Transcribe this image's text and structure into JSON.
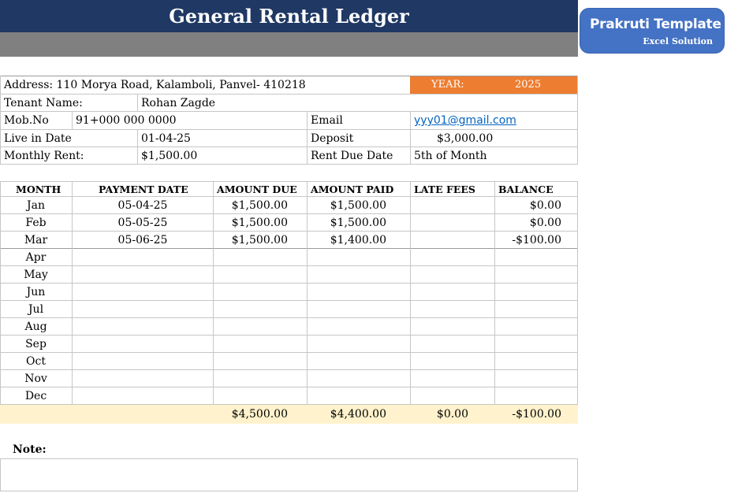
{
  "header": {
    "title": "General Rental Ledger"
  },
  "logo": {
    "brand": "Prakruti Template",
    "tagline": "Excel Solution",
    "color": "#4472c4"
  },
  "colors": {
    "title_bg": "#1f3864",
    "year_bg": "#ed7d31",
    "totals_bg": "#fff2cc",
    "link": "#0563c1"
  },
  "info": {
    "address": "Address: 110 Morya Road, Kalamboli, Panvel- 410218",
    "year_label": "YEAR:",
    "year_value": "2025",
    "tenant_label": "Tenant Name:",
    "tenant_value": "Rohan Zagde",
    "mob_label": "Mob.No",
    "mob_value": "91+000 000 0000",
    "email_label": "Email",
    "email_value": "yyy01@gmail.com",
    "live_label": "Live in Date",
    "live_value": "01-04-25",
    "deposit_label": "Deposit",
    "deposit_value": "$3,000.00",
    "rent_label": "Monthly Rent:",
    "rent_value": "$1,500.00",
    "due_label": "Rent Due Date",
    "due_value": "5th of Month"
  },
  "ledger": {
    "columns": [
      "MONTH",
      "PAYMENT DATE",
      "AMOUNT DUE",
      "AMOUNT PAID",
      "LATE FEES",
      "BALANCE"
    ],
    "rows": [
      {
        "month": "Jan",
        "date": "05-04-25",
        "due": "$1,500.00",
        "paid": "$1,500.00",
        "late": "",
        "balance": "$0.00"
      },
      {
        "month": "Feb",
        "date": "05-05-25",
        "due": "$1,500.00",
        "paid": "$1,500.00",
        "late": "",
        "balance": "$0.00"
      },
      {
        "month": "Mar",
        "date": "05-06-25",
        "due": "$1,500.00",
        "paid": "$1,400.00",
        "late": "",
        "balance": "-$100.00"
      },
      {
        "month": "Apr",
        "date": "",
        "due": "",
        "paid": "",
        "late": "",
        "balance": ""
      },
      {
        "month": "May",
        "date": "",
        "due": "",
        "paid": "",
        "late": "",
        "balance": ""
      },
      {
        "month": "Jun",
        "date": "",
        "due": "",
        "paid": "",
        "late": "",
        "balance": ""
      },
      {
        "month": "Jul",
        "date": "",
        "due": "",
        "paid": "",
        "late": "",
        "balance": ""
      },
      {
        "month": "Aug",
        "date": "",
        "due": "",
        "paid": "",
        "late": "",
        "balance": ""
      },
      {
        "month": "Sep",
        "date": "",
        "due": "",
        "paid": "",
        "late": "",
        "balance": ""
      },
      {
        "month": "Oct",
        "date": "",
        "due": "",
        "paid": "",
        "late": "",
        "balance": ""
      },
      {
        "month": "Nov",
        "date": "",
        "due": "",
        "paid": "",
        "late": "",
        "balance": ""
      },
      {
        "month": "Dec",
        "date": "",
        "due": "",
        "paid": "",
        "late": "",
        "balance": ""
      }
    ],
    "totals": {
      "due": "$4,500.00",
      "paid": "$4,400.00",
      "late": "$0.00",
      "balance": "-$100.00"
    }
  },
  "note": {
    "label": "Note:",
    "text": ""
  }
}
